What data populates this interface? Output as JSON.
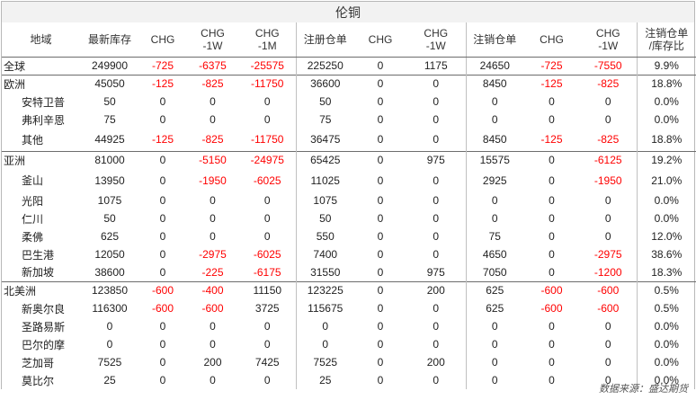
{
  "title": "伦铜",
  "headers": [
    "地域",
    "最新库存",
    "CHG",
    "CHG\n-1W",
    "CHG\n-1M",
    "注册仓单",
    "CHG",
    "CHG\n-1W",
    "注销仓单",
    "CHG",
    "CHG\n-1W",
    "注销仓单\n/库存比"
  ],
  "rows": [
    {
      "name": "全球",
      "level": 0,
      "values": [
        "249900",
        "-725",
        "-6375",
        "-25575",
        "225250",
        "0",
        "1175",
        "24650",
        "-725",
        "-7550",
        "9.9%"
      ]
    },
    {
      "name": "欧洲",
      "level": 0,
      "values": [
        "45050",
        "-125",
        "-825",
        "-11750",
        "36600",
        "0",
        "0",
        "8450",
        "-125",
        "-825",
        "18.8%"
      ]
    },
    {
      "name": "安特卫普",
      "level": 1,
      "values": [
        "50",
        "0",
        "0",
        "0",
        "50",
        "0",
        "0",
        "0",
        "0",
        "0",
        "0.0%"
      ]
    },
    {
      "name": "弗利辛恩",
      "level": 1,
      "values": [
        "75",
        "0",
        "0",
        "0",
        "75",
        "0",
        "0",
        "0",
        "0",
        "0",
        "0.0%"
      ]
    },
    {
      "name": "其他",
      "level": 1,
      "values": [
        "44925",
        "-125",
        "-825",
        "-11750",
        "36475",
        "0",
        "0",
        "8450",
        "-125",
        "-825",
        "18.8%"
      ]
    },
    {
      "name": "亚洲",
      "level": 0,
      "values": [
        "81000",
        "0",
        "-5150",
        "-24975",
        "65425",
        "0",
        "975",
        "15575",
        "0",
        "-6125",
        "19.2%"
      ]
    },
    {
      "name": "釜山",
      "level": 1,
      "values": [
        "13950",
        "0",
        "-1950",
        "-6025",
        "11025",
        "0",
        "0",
        "2925",
        "0",
        "-1950",
        "21.0%"
      ]
    },
    {
      "name": "光阳",
      "level": 1,
      "values": [
        "1075",
        "0",
        "0",
        "0",
        "1075",
        "0",
        "0",
        "0",
        "0",
        "0",
        "0.0%"
      ]
    },
    {
      "name": "仁川",
      "level": 1,
      "values": [
        "50",
        "0",
        "0",
        "0",
        "50",
        "0",
        "0",
        "0",
        "0",
        "0",
        "0.0%"
      ]
    },
    {
      "name": "柔佛",
      "level": 1,
      "values": [
        "625",
        "0",
        "0",
        "0",
        "550",
        "0",
        "0",
        "75",
        "0",
        "0",
        "12.0%"
      ]
    },
    {
      "name": "巴生港",
      "level": 1,
      "values": [
        "12050",
        "0",
        "-2975",
        "-6025",
        "7400",
        "0",
        "0",
        "4650",
        "0",
        "-2975",
        "38.6%"
      ]
    },
    {
      "name": "新加坡",
      "level": 1,
      "values": [
        "38600",
        "0",
        "-225",
        "-6175",
        "31550",
        "0",
        "975",
        "7050",
        "0",
        "-1200",
        "18.3%"
      ]
    },
    {
      "name": "北美洲",
      "level": 0,
      "values": [
        "123850",
        "-600",
        "-400",
        "11150",
        "123225",
        "0",
        "200",
        "625",
        "-600",
        "-600",
        "0.5%"
      ]
    },
    {
      "name": "新奥尔良",
      "level": 1,
      "values": [
        "116300",
        "-600",
        "-600",
        "3725",
        "115675",
        "0",
        "0",
        "625",
        "-600",
        "-600",
        "0.5%"
      ]
    },
    {
      "name": "圣路易斯",
      "level": 1,
      "values": [
        "0",
        "0",
        "0",
        "0",
        "0",
        "0",
        "0",
        "0",
        "0",
        "0",
        "0.0%"
      ]
    },
    {
      "name": "巴尔的摩",
      "level": 1,
      "values": [
        "0",
        "0",
        "0",
        "0",
        "0",
        "0",
        "0",
        "0",
        "0",
        "0",
        "0.0%"
      ]
    },
    {
      "name": "芝加哥",
      "level": 1,
      "values": [
        "7525",
        "0",
        "200",
        "7425",
        "7525",
        "0",
        "200",
        "0",
        "0",
        "0",
        "0.0%"
      ]
    },
    {
      "name": "莫比尔",
      "level": 1,
      "values": [
        "25",
        "0",
        "0",
        "0",
        "25",
        "0",
        "0",
        "0",
        "0",
        "0",
        "0.0%"
      ]
    }
  ],
  "footer": "数据来源：盛达期货"
}
